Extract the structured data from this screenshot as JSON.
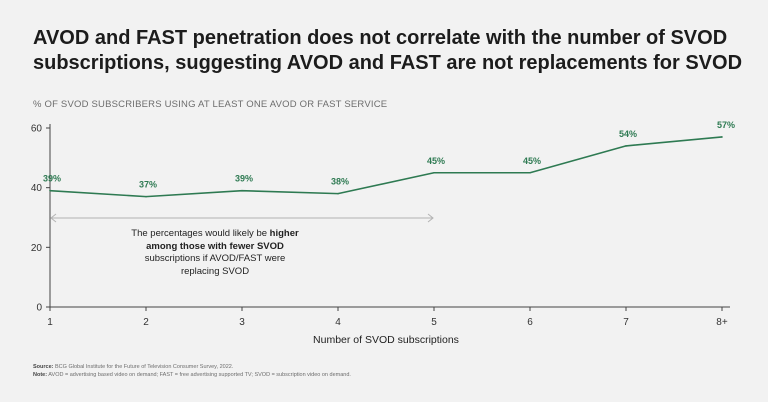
{
  "title": {
    "line1": "AVOD and FAST penetration does not correlate with the number of SVOD",
    "line2": "subscriptions, suggesting AVOD and FAST are not replacements for SVOD"
  },
  "subtitle": "% OF SVOD SUBSCRIBERS USING AT LEAST ONE AVOD OR FAST SERVICE",
  "annotation": {
    "part1": "The percentages would likely be ",
    "bold": "higher among those with fewer SVOD",
    "part2": " subscriptions if AVOD/FAST were replacing SVOD",
    "arrow_from": "1",
    "arrow_to": "5"
  },
  "footnote": {
    "source_label": "Source:",
    "source_text": " BCG Global Institute for the Future of Television Consumer Survey, 2022.",
    "note_label": "Note:",
    "note_text": " AVOD = advertising based video on demand; FAST = free advertising supported TV; SVOD = subscription video on demand."
  },
  "colors": {
    "line": "#2e7a52",
    "axis": "#444444",
    "arrow": "#b3b3b3",
    "background": "#f2f2f2"
  },
  "chart_data": {
    "type": "line",
    "title": "% OF SVOD SUBSCRIBERS USING AT LEAST ONE AVOD OR FAST SERVICE",
    "xlabel": "Number of SVOD subscriptions",
    "ylabel": "",
    "categories": [
      "1",
      "2",
      "3",
      "4",
      "5",
      "6",
      "7",
      "8+"
    ],
    "values": [
      39,
      37,
      39,
      38,
      45,
      45,
      54,
      57
    ],
    "data_labels": [
      "39%",
      "37%",
      "39%",
      "38%",
      "45%",
      "45%",
      "54%",
      "57%"
    ],
    "yticks": [
      0,
      20,
      40,
      60
    ],
    "ylim": [
      0,
      60
    ],
    "grid": false,
    "legend": "none"
  }
}
